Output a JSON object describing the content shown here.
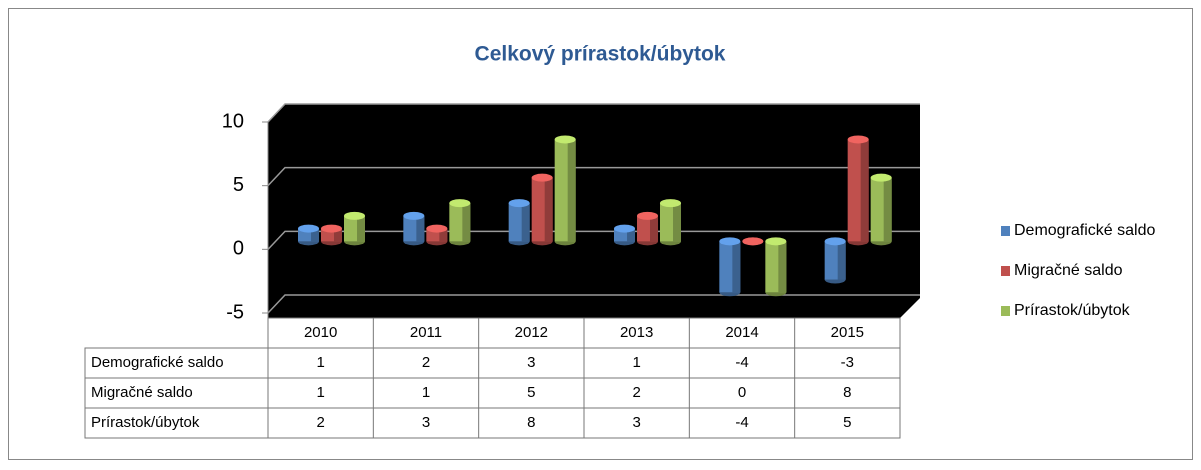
{
  "chart_data": {
    "type": "bar3d",
    "title": "Celkový prírastok/úbytok",
    "categories": [
      "2010",
      "2011",
      "2012",
      "2013",
      "2014",
      "2015"
    ],
    "series": [
      {
        "name": "Demografické saldo",
        "color": "#4f81bd",
        "values": [
          1,
          2,
          3,
          1,
          -4,
          -3
        ]
      },
      {
        "name": "Migračné saldo",
        "color": "#c0504d",
        "values": [
          1,
          1,
          5,
          2,
          0,
          8
        ]
      },
      {
        "name": "Prírastok/úbytok",
        "color": "#9bbb59",
        "values": [
          2,
          3,
          8,
          3,
          -4,
          5
        ]
      }
    ],
    "ylim": [
      -5,
      10
    ],
    "yticks": [
      -5,
      0,
      5,
      10
    ],
    "grid": true,
    "legend": "right",
    "data_table": true
  }
}
